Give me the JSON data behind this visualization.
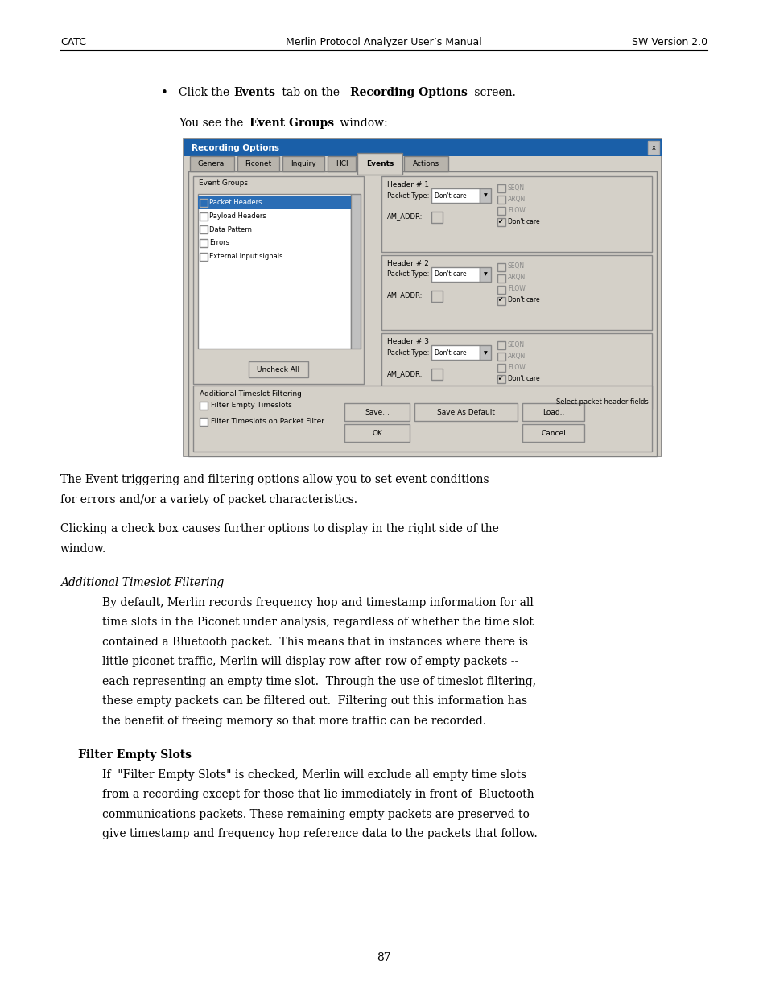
{
  "page_width": 9.54,
  "page_height": 12.35,
  "dpi": 100,
  "bg_color": "#ffffff",
  "header_left": "CATC",
  "header_center": "Merlin Protocol Analyzer User’s Manual",
  "header_right": "SW Version 2.0",
  "footer_page": "87",
  "para1_line1": "The Event triggering and filtering options allow you to set event conditions",
  "para1_line2": "for errors and/or a variety of packet characteristics.",
  "para2_line1": "Clicking a check box causes further options to display in the right side of the",
  "para2_line2": "window.",
  "section_italic": "Additional Timeslot Filtering",
  "sec_body": [
    "By default, Merlin records frequency hop and timestamp information for all",
    "time slots in the Piconet under analysis, regardless of whether the time slot",
    "contained a Bluetooth packet.  This means that in instances where there is",
    "little piconet traffic, Merlin will display row after row of empty packets --",
    "each representing an empty time slot.  Through the use of timeslot filtering,",
    "these empty packets can be filtered out.  Filtering out this information has",
    "the benefit of freeing memory so that more traffic can be recorded."
  ],
  "subsection_bold": "Filter Empty Slots",
  "sub_body": [
    "If  \"Filter Empty Slots\" is checked, Merlin will exclude all empty time slots",
    "from a recording except for those that lie immediately in front of  Bluetooth",
    "communications packets. These remaining empty packets are preserved to",
    "give timestamp and frequency hop reference data to the packets that follow."
  ]
}
